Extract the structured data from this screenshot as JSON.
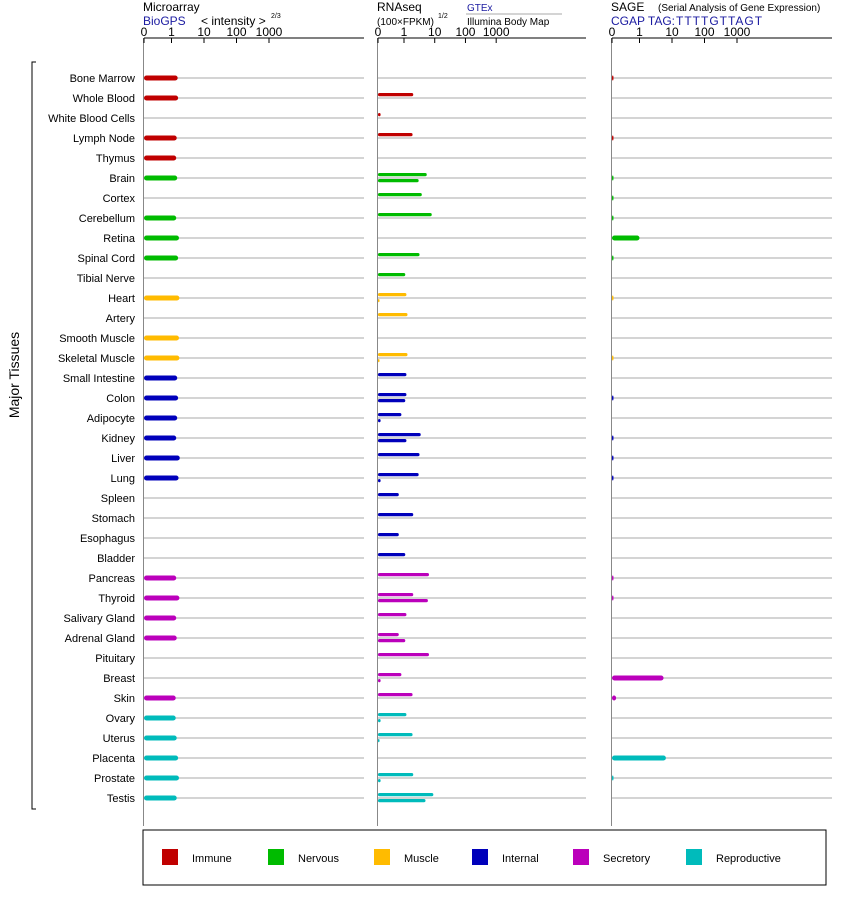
{
  "y_axis_title": "Major Tissues",
  "categories": {
    "immune": {
      "label": "Immune",
      "color": "#c00000"
    },
    "nervous": {
      "label": "Nervous",
      "color": "#00bb00"
    },
    "muscle": {
      "label": "Muscle",
      "color": "#ffbb00"
    },
    "internal": {
      "label": "Internal",
      "color": "#0000bb"
    },
    "secretory": {
      "label": "Secretory",
      "color": "#bb00bb"
    },
    "reproductive": {
      "label": "Reproductive",
      "color": "#00bbbb"
    }
  },
  "legend_order": [
    "immune",
    "nervous",
    "muscle",
    "internal",
    "secretory",
    "reproductive"
  ],
  "chart_data": [
    {
      "type": "bar",
      "panel": "microarray",
      "title": "Microarray",
      "source": "BioGPS",
      "unit_label": "< intensity >",
      "unit_exponent": "2/3",
      "ticks": [
        "0",
        "1",
        "10",
        "100",
        "1000"
      ],
      "xlim": [
        0,
        1000
      ],
      "scale": "log-like",
      "categories": [
        "Bone Marrow",
        "Whole Blood",
        "White Blood Cells",
        "Lymph Node",
        "Thymus",
        "Brain",
        "Cortex",
        "Cerebellum",
        "Retina",
        "Spinal Cord",
        "Tibial Nerve",
        "Heart",
        "Artery",
        "Smooth Muscle",
        "Skeletal Muscle",
        "Small Intestine",
        "Colon",
        "Adipocyte",
        "Kidney",
        "Liver",
        "Lung",
        "Spleen",
        "Stomach",
        "Esophagus",
        "Bladder",
        "Pancreas",
        "Thyroid",
        "Salivary Gland",
        "Adrenal Gland",
        "Pituitary",
        "Breast",
        "Skin",
        "Ovary",
        "Uterus",
        "Placenta",
        "Prostate",
        "Testis"
      ],
      "series": [
        {
          "values": [
            1.55,
            1.6,
            null,
            1.45,
            1.4,
            1.5,
            null,
            1.4,
            1.7,
            1.6,
            null,
            1.75,
            null,
            1.7,
            1.75,
            1.5,
            1.6,
            1.5,
            1.4,
            1.8,
            1.65,
            null,
            null,
            null,
            null,
            1.4,
            1.75,
            1.4,
            1.45,
            null,
            null,
            1.35,
            1.35,
            1.45,
            1.6,
            1.7,
            1.45
          ]
        }
      ]
    },
    {
      "type": "bar",
      "panel": "rnaseq",
      "title": "RNAseq",
      "source": "GTEx",
      "source_detail": "Illumina Body Map",
      "unit_label": "(100×FPKM)",
      "unit_exponent": "1/2",
      "ticks": [
        "0",
        "1",
        "10",
        "100",
        "1000"
      ],
      "xlim": [
        0,
        1000
      ],
      "scale": "log-like",
      "categories": [
        "Bone Marrow",
        "Whole Blood",
        "White Blood Cells",
        "Lymph Node",
        "Thymus",
        "Brain",
        "Cortex",
        "Cerebellum",
        "Retina",
        "Spinal Cord",
        "Tibial Nerve",
        "Heart",
        "Artery",
        "Smooth Muscle",
        "Skeletal Muscle",
        "Small Intestine",
        "Colon",
        "Adipocyte",
        "Kidney",
        "Liver",
        "Lung",
        "Spleen",
        "Stomach",
        "Esophagus",
        "Bladder",
        "Pancreas",
        "Thyroid",
        "Salivary Gland",
        "Adrenal Gland",
        "Pituitary",
        "Breast",
        "Skin",
        "Ovary",
        "Uterus",
        "Placenta",
        "Prostate",
        "Testis"
      ],
      "series": [
        {
          "name": "GTEx",
          "values": [
            null,
            2.0,
            0.1,
            1.9,
            null,
            5.5,
            3.8,
            8.0,
            null,
            3.2,
            1.1,
            1.2,
            1.3,
            null,
            1.3,
            1.2,
            1.2,
            0.9,
            3.5,
            3.2,
            3.0,
            0.8,
            2.0,
            0.8,
            1.1,
            6.5,
            2.0,
            1.2,
            0.8,
            6.5,
            0.9,
            1.9,
            1.2,
            1.9,
            null,
            2.0,
            9.0
          ]
        },
        {
          "name": "Illumina Body Map",
          "values": [
            null,
            null,
            null,
            null,
            null,
            3.0,
            null,
            null,
            null,
            null,
            null,
            0.05,
            null,
            null,
            0.05,
            null,
            1.1,
            0.1,
            1.2,
            null,
            0.1,
            null,
            null,
            null,
            null,
            null,
            6.0,
            null,
            1.1,
            null,
            0.1,
            null,
            0.1,
            0.05,
            null,
            0.1,
            5.0
          ]
        }
      ]
    },
    {
      "type": "bar",
      "panel": "sage",
      "title": "SAGE",
      "subtitle": "(Serial Analysis of Gene Expression)",
      "tag_label": "CGAP TAG:",
      "tag_sequence": "TTTTGTTAGT",
      "ticks": [
        "0",
        "1",
        "10",
        "100",
        "1000"
      ],
      "xlim": [
        0,
        1000
      ],
      "scale": "log-like",
      "categories": [
        "Bone Marrow",
        "Whole Blood",
        "White Blood Cells",
        "Lymph Node",
        "Thymus",
        "Brain",
        "Cortex",
        "Cerebellum",
        "Retina",
        "Spinal Cord",
        "Tibial Nerve",
        "Heart",
        "Artery",
        "Smooth Muscle",
        "Skeletal Muscle",
        "Small Intestine",
        "Colon",
        "Adipocyte",
        "Kidney",
        "Liver",
        "Lung",
        "Spleen",
        "Stomach",
        "Esophagus",
        "Bladder",
        "Pancreas",
        "Thyroid",
        "Salivary Gland",
        "Adrenal Gland",
        "Pituitary",
        "Breast",
        "Skin",
        "Ovary",
        "Uterus",
        "Placenta",
        "Prostate",
        "Testis"
      ],
      "series": [
        {
          "values": [
            0.05,
            null,
            null,
            0.05,
            null,
            0.05,
            0.05,
            0.05,
            1.0,
            0.05,
            null,
            0.03,
            null,
            null,
            0.03,
            null,
            0.05,
            null,
            0.05,
            0.05,
            0.05,
            null,
            null,
            null,
            null,
            0.05,
            0.05,
            null,
            null,
            null,
            5.5,
            0.15,
            null,
            null,
            6.5,
            0.05,
            null
          ]
        }
      ]
    }
  ],
  "tissue_groups": [
    "immune",
    "immune",
    "immune",
    "immune",
    "immune",
    "nervous",
    "nervous",
    "nervous",
    "nervous",
    "nervous",
    "nervous",
    "muscle",
    "muscle",
    "muscle",
    "muscle",
    "internal",
    "internal",
    "internal",
    "internal",
    "internal",
    "internal",
    "internal",
    "internal",
    "internal",
    "internal",
    "secretory",
    "secretory",
    "secretory",
    "secretory",
    "secretory",
    "secretory",
    "secretory",
    "reproductive",
    "reproductive",
    "reproductive",
    "reproductive",
    "reproductive"
  ]
}
